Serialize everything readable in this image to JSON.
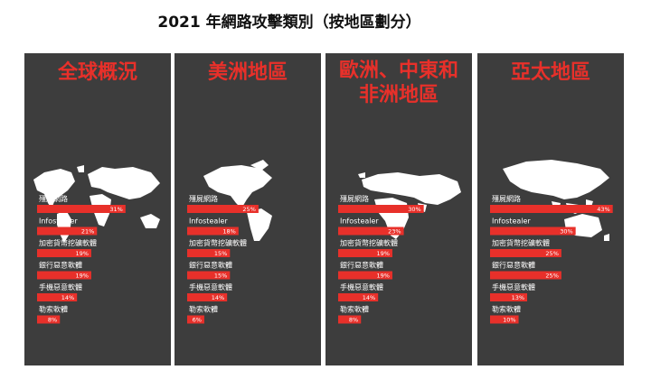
{
  "title": "2021 年網路攻擊類別（按地區劃分）",
  "chart_data": [
    {
      "type": "bar",
      "region": "全球概況",
      "categories": [
        "殭屍網路",
        "Infostealer",
        "加密貨幣挖礦軟體",
        "銀行惡意軟體",
        "手機惡意軟體",
        "勒索軟體"
      ],
      "values": [
        31,
        21,
        19,
        19,
        14,
        8
      ],
      "value_labels": [
        "31%",
        "21%",
        "19%",
        "19%",
        "14%",
        "8%"
      ],
      "xlim": [
        0,
        45
      ],
      "color": "#e8302a"
    },
    {
      "type": "bar",
      "region": "美洲地區",
      "categories": [
        "殭屍網路",
        "Infostealer",
        "加密貨幣挖礦軟體",
        "銀行惡意軟體",
        "手機惡意軟體",
        "勒索軟體"
      ],
      "values": [
        25,
        18,
        15,
        15,
        14,
        6
      ],
      "value_labels": [
        "25%",
        "18%",
        "15%",
        "15%",
        "14%",
        "6%"
      ],
      "xlim": [
        0,
        45
      ],
      "color": "#e8302a"
    },
    {
      "type": "bar",
      "region": "歐洲、中東和非洲地區",
      "categories": [
        "殭屍網路",
        "Infostealer",
        "加密貨幣挖礦軟體",
        "銀行惡意軟體",
        "手機惡意軟體",
        "勒索軟體"
      ],
      "values": [
        30,
        23,
        19,
        19,
        14,
        8
      ],
      "value_labels": [
        "30%",
        "23%",
        "19%",
        "19%",
        "14%",
        "8%"
      ],
      "xlim": [
        0,
        45
      ],
      "color": "#e8302a"
    },
    {
      "type": "bar",
      "region": "亞太地區",
      "categories": [
        "殭屍網路",
        "Infostealer",
        "加密貨幣挖礦軟體",
        "銀行惡意軟體",
        "手機惡意軟體",
        "勒索軟體"
      ],
      "values": [
        43,
        30,
        25,
        25,
        13,
        10
      ],
      "value_labels": [
        "43%",
        "30%",
        "25%",
        "25%",
        "13%",
        "10%"
      ],
      "xlim": [
        0,
        45
      ],
      "color": "#e8302a"
    }
  ],
  "panels": [
    {
      "title_lines": [
        "全球概況"
      ],
      "map": "world-map"
    },
    {
      "title_lines": [
        "美洲地區"
      ],
      "map": "americas-map"
    },
    {
      "title_lines": [
        "歐洲、中東和",
        "非洲地區"
      ],
      "map": "emea-map"
    },
    {
      "title_lines": [
        "亞太地區"
      ],
      "map": "apac-map"
    }
  ],
  "colors": {
    "panel_bg": "#3d3d3d",
    "accent": "#e8302a",
    "text": "#ffffff"
  }
}
